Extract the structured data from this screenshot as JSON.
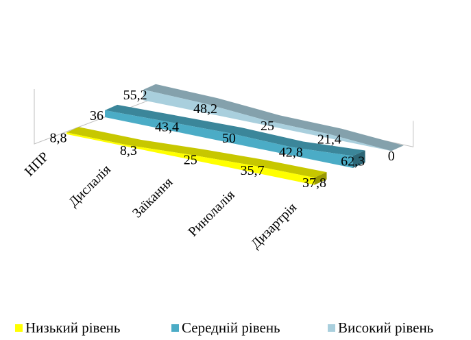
{
  "chart_data": {
    "type": "area",
    "style": "3d-ribbon",
    "categories": [
      "НПР",
      "Дислалія",
      "Заїкання",
      "Ринолалія",
      "Дизартрія"
    ],
    "series": [
      {
        "name": "Низький рівень",
        "values": [
          8.8,
          8.3,
          25,
          35.7,
          37.8
        ],
        "color": "#FFFF00",
        "labels": [
          "8,8",
          "8,3",
          "25",
          "35,7",
          "37,8"
        ]
      },
      {
        "name": "Середній рівень",
        "values": [
          36,
          43.4,
          50,
          42.8,
          62.3
        ],
        "color": "#4BACC6",
        "labels": [
          "36",
          "43,4",
          "50",
          "42,8",
          "62,3"
        ]
      },
      {
        "name": "Високий рівень",
        "values": [
          55.2,
          48.2,
          25,
          21.4,
          0
        ],
        "color": "#A9CFDD",
        "labels": [
          "55,2",
          "48,2",
          "25",
          "21,4",
          "0"
        ]
      }
    ],
    "legend_position": "bottom",
    "grid": false
  }
}
